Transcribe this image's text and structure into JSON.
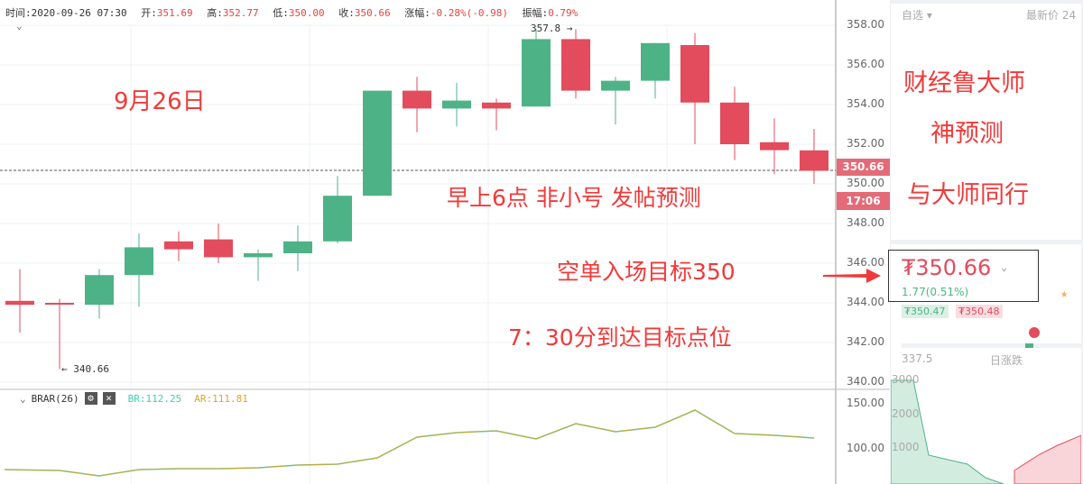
{
  "info": {
    "time_label": "时间:",
    "time": "2020-09-26 07:30",
    "open_label": "开:",
    "open": "351.69",
    "high_label": "高:",
    "high": "352.77",
    "low_label": "低:",
    "low": "350.00",
    "close_label": "收:",
    "close": "350.66",
    "change_label": "涨幅:",
    "change": "-0.28%(-0.98)",
    "amp_label": "振幅:",
    "amp": "0.79%"
  },
  "price_axis": {
    "ticks": [
      "358.00",
      "356.00",
      "354.00",
      "352.00",
      "350.00",
      "348.00",
      "346.00",
      "344.00",
      "342.00",
      "340.00"
    ],
    "current": "350.66",
    "countdown": "17:06"
  },
  "markers": {
    "high": "357.8 →",
    "low": "← 340.66"
  },
  "annotations": {
    "date": "9月26日",
    "a1": "早上6点  非小号  发帖预测",
    "a2": "空单入场目标350",
    "a3": "7：30分到达目标点位",
    "r1": "财经鲁大师",
    "r2": "神预测",
    "r3": "与大师同行"
  },
  "indicator": {
    "name": "BRAR(26)",
    "br": "BR:112.25",
    "ar": "AR:111.81",
    "ticks": [
      "150.00",
      "100.00"
    ],
    "br_color": "#3ccfb0",
    "ar_color": "#d6a72a"
  },
  "colors": {
    "up": "#4db387",
    "down": "#e24c5c"
  },
  "candles": [
    [
      344.1,
      343.9,
      345.7,
      342.5
    ],
    [
      344.0,
      343.95,
      344.2,
      340.66
    ],
    [
      343.9,
      345.4,
      345.7,
      343.2
    ],
    [
      345.4,
      346.8,
      347.5,
      343.8
    ],
    [
      347.1,
      346.7,
      347.6,
      346.1
    ],
    [
      347.2,
      346.3,
      348.0,
      346.0
    ],
    [
      346.3,
      346.5,
      346.7,
      345.1
    ],
    [
      346.5,
      347.1,
      347.9,
      345.6
    ],
    [
      347.1,
      349.4,
      350.4,
      347.0
    ],
    [
      349.4,
      354.7,
      354.7,
      349.4
    ],
    [
      354.7,
      353.8,
      355.4,
      352.6
    ],
    [
      353.8,
      354.2,
      355.1,
      352.9
    ],
    [
      354.1,
      353.8,
      354.3,
      352.7
    ],
    [
      353.9,
      357.3,
      357.8,
      353.9
    ],
    [
      357.3,
      354.7,
      357.8,
      354.3
    ],
    [
      354.7,
      355.2,
      355.4,
      353.0
    ],
    [
      355.2,
      357.1,
      357.1,
      354.3
    ],
    [
      357.0,
      354.1,
      357.6,
      352.0
    ],
    [
      354.1,
      352.0,
      354.9,
      351.2
    ],
    [
      352.1,
      351.7,
      353.3,
      350.5
    ],
    [
      351.69,
      350.66,
      352.77,
      350.0
    ]
  ],
  "brar": [
    77,
    76,
    70,
    77,
    78,
    78,
    79,
    82,
    83,
    90,
    113,
    118,
    120,
    111,
    128,
    119,
    124,
    143,
    117,
    115,
    112
  ],
  "sidebar": {
    "watch": "自选 ▾",
    "latest": "最新价",
    "col3": "24",
    "price": "₮350.66",
    "change": "1.77(0.51%)",
    "bid": "₮350.47",
    "ask": "₮350.48",
    "low_val": "337.5",
    "daily": "日涨跌",
    "depth_ticks": [
      "3000",
      "2000",
      "1000"
    ]
  }
}
